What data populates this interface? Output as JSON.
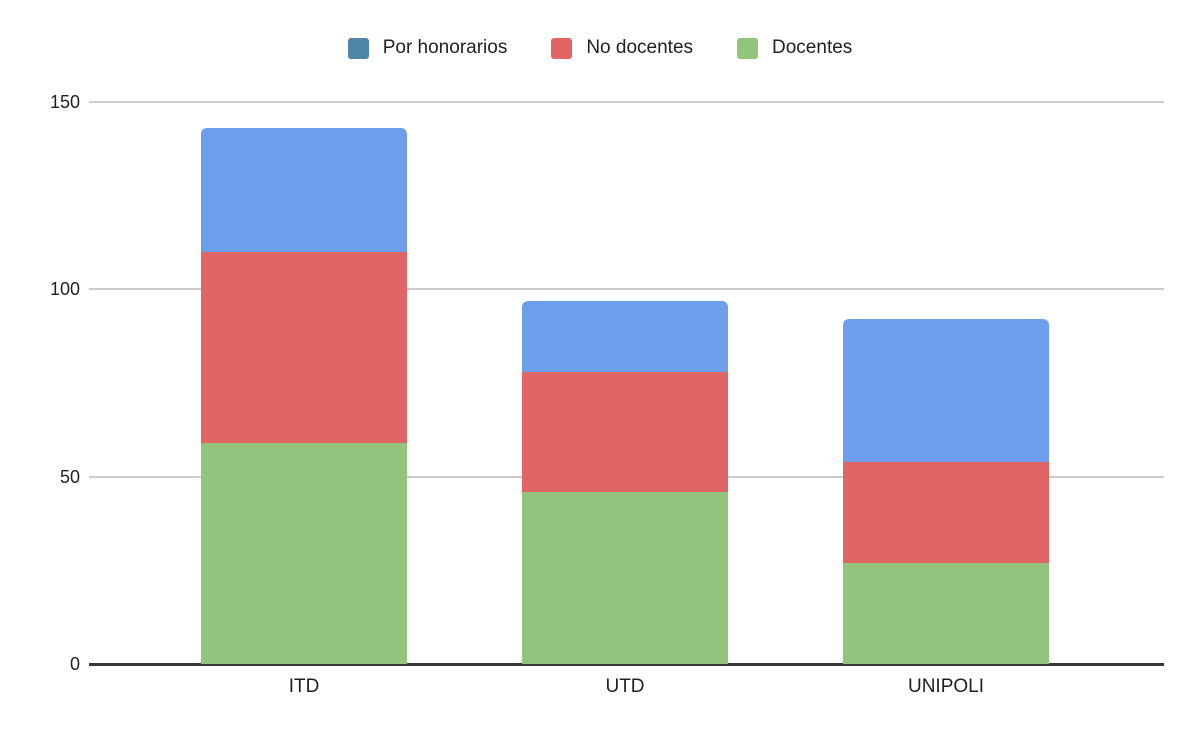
{
  "chart_data": {
    "type": "bar",
    "stacked": true,
    "title": "",
    "xlabel": "",
    "ylabel": "",
    "categories": [
      "ITD",
      "UTD",
      "UNIPOLI"
    ],
    "series": [
      {
        "name": "Docentes",
        "color": "#93c47d",
        "values": [
          59,
          46,
          27
        ]
      },
      {
        "name": "No docentes",
        "color": "#e06666",
        "values": [
          51,
          32,
          27
        ]
      },
      {
        "name": "Por honorarios",
        "color": "#6d9eeb",
        "values": [
          33,
          19,
          38
        ]
      }
    ],
    "y_ticks": [
      0,
      50,
      100,
      150
    ],
    "ylim": [
      0,
      150
    ],
    "grid": true,
    "legend_position": "top"
  },
  "legend": {
    "items": [
      {
        "label": "Por honorarios",
        "swatch": "#4d86a8"
      },
      {
        "label": "No docentes",
        "swatch": "#e06666"
      },
      {
        "label": "Docentes",
        "swatch": "#93c47d"
      }
    ]
  },
  "colors": {
    "background": "#ffffff",
    "gridline": "#cccccc",
    "axis": "#383838",
    "text": "#212121",
    "bar_blue": "#6d9eeb",
    "bar_red": "#e06666",
    "bar_green": "#93c47d",
    "legend_blue_swatch": "#4d86a8"
  }
}
